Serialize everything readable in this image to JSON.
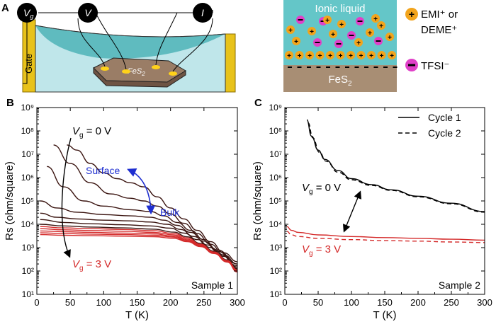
{
  "panel_a": {
    "label": "A",
    "meters": [
      "V",
      "V",
      "I"
    ],
    "meter_vg_sub": "g",
    "gate_label": "Gate",
    "sample_label": "FeS",
    "sample_label_sub": "2",
    "schematic_top": "Ionic liquid",
    "schematic_bottom": "FeS",
    "schematic_bottom_sub": "2",
    "legend_cation": "EMI⁺ or",
    "legend_cation_2": "DEME⁺",
    "legend_anion": "TFSI⁻",
    "colors": {
      "liquid": "#64c6c8",
      "substrate": "#a88e74",
      "cation": "#f2a41c",
      "anion": "#e040c8",
      "gate": "#e8c21a"
    }
  },
  "chart_data": [
    {
      "type": "line",
      "panel_label": "B",
      "ylabel": "Rs (ohm/square)",
      "xlabel": "T (K)",
      "xlim": [
        0,
        300
      ],
      "ylim_log10": [
        1,
        9
      ],
      "xticks": [
        0,
        50,
        100,
        150,
        200,
        250,
        300
      ],
      "yticks": [
        "10¹",
        "10²",
        "10³",
        "10⁴",
        "10⁵",
        "10⁶",
        "10⁷",
        "10⁸",
        "10⁹"
      ],
      "scale_y": "log",
      "annotations": {
        "vg_top": "= 0 V",
        "vg_bottom": "= 3 V",
        "surface": "Surface",
        "bulk": "Bulk",
        "sample": "Sample 1"
      },
      "colors": {
        "dark": "#3a1410",
        "red": "#d42a2a",
        "blue": "#1f2fd0"
      },
      "series": [
        {
          "color": "#3a1410",
          "points": [
            [
              45,
              25000000.0
            ],
            [
              60,
              15000000.0
            ],
            [
              80,
              4000000.0
            ],
            [
              100,
              1600000.0
            ],
            [
              120,
              900000.0
            ],
            [
              140,
              600000.0
            ],
            [
              160,
              400000.0
            ],
            [
              180,
              150000.0
            ],
            [
              200,
              50000.0
            ],
            [
              220,
              17000.0
            ],
            [
              240,
              5500
            ],
            [
              260,
              1800
            ],
            [
              280,
              600
            ],
            [
              300,
              250
            ]
          ]
        },
        {
          "color": "#3a1410",
          "points": [
            [
              25,
              25000000.0
            ],
            [
              50,
              4000000.0
            ],
            [
              80,
              600000.0
            ],
            [
              110,
              200000.0
            ],
            [
              140,
              130000.0
            ],
            [
              160,
              100000.0
            ],
            [
              180,
              60000.0
            ],
            [
              200,
              28000.0
            ],
            [
              220,
              11000.0
            ],
            [
              240,
              4000
            ],
            [
              260,
              1400
            ],
            [
              280,
              480
            ],
            [
              300,
              200
            ]
          ]
        },
        {
          "color": "#3a1410",
          "points": [
            [
              15,
              3000000.0
            ],
            [
              40,
              400000.0
            ],
            [
              70,
              100000.0
            ],
            [
              100,
              60000.0
            ],
            [
              140,
              42000.0
            ],
            [
              170,
              35000.0
            ],
            [
              190,
              23000.0
            ],
            [
              210,
              12000.0
            ],
            [
              230,
              5500
            ],
            [
              250,
              2200
            ],
            [
              270,
              800
            ],
            [
              300,
              200
            ]
          ]
        },
        {
          "color": "#3a1410",
          "points": [
            [
              5,
              100000.0
            ],
            [
              30,
              50000.0
            ],
            [
              60,
              33000.0
            ],
            [
              100,
              26000.0
            ],
            [
              140,
              23000.0
            ],
            [
              170,
              20000.0
            ],
            [
              190,
              15000.0
            ],
            [
              210,
              9000
            ],
            [
              230,
              4500
            ],
            [
              250,
              1900
            ],
            [
              270,
              700
            ],
            [
              300,
              170
            ]
          ]
        },
        {
          "color": "#3a1410",
          "points": [
            [
              5,
              30000.0
            ],
            [
              30,
              20000.0
            ],
            [
              60,
              17000.0
            ],
            [
              100,
              15000.0
            ],
            [
              140,
              14000.0
            ],
            [
              170,
              12500.0
            ],
            [
              195,
              10000.0
            ],
            [
              215,
              6000
            ],
            [
              235,
              3000
            ],
            [
              255,
              1300
            ],
            [
              275,
              500
            ],
            [
              300,
              150
            ]
          ]
        },
        {
          "color": "#3a1410",
          "points": [
            [
              5,
              16000.0
            ],
            [
              40,
              12000.0
            ],
            [
              80,
              10500.0
            ],
            [
              130,
              9500
            ],
            [
              170,
              8500
            ],
            [
              200,
              6800
            ],
            [
              220,
              4200
            ],
            [
              240,
              2200
            ],
            [
              260,
              1000
            ],
            [
              280,
              420
            ],
            [
              300,
              130
            ]
          ]
        },
        {
          "color": "#3a1410",
          "points": [
            [
              5,
              10000.0
            ],
            [
              40,
              8500
            ],
            [
              80,
              7600
            ],
            [
              130,
              7000
            ],
            [
              175,
              6200
            ],
            [
              205,
              4600
            ],
            [
              225,
              2900
            ],
            [
              245,
              1500
            ],
            [
              265,
              700
            ],
            [
              285,
              300
            ],
            [
              300,
              120
            ]
          ]
        },
        {
          "color": "#d42a2a",
          "points": [
            [
              5,
              8000
            ],
            [
              40,
              7000
            ],
            [
              80,
              6500
            ],
            [
              130,
              6000
            ],
            [
              175,
              5300
            ],
            [
              205,
              4000
            ],
            [
              225,
              2600
            ],
            [
              245,
              1400
            ],
            [
              265,
              650
            ],
            [
              285,
              280
            ],
            [
              300,
              110
            ]
          ]
        },
        {
          "color": "#d42a2a",
          "points": [
            [
              5,
              6500
            ],
            [
              40,
              5800
            ],
            [
              80,
              5400
            ],
            [
              130,
              5000
            ],
            [
              175,
              4500
            ],
            [
              205,
              3500
            ],
            [
              225,
              2300
            ],
            [
              245,
              1300
            ],
            [
              265,
              620
            ],
            [
              285,
              270
            ],
            [
              300,
              105
            ]
          ]
        },
        {
          "color": "#d42a2a",
          "points": [
            [
              5,
              5200
            ],
            [
              40,
              4800
            ],
            [
              80,
              4500
            ],
            [
              130,
              4200
            ],
            [
              175,
              3900
            ],
            [
              205,
              3100
            ],
            [
              225,
              2100
            ],
            [
              245,
              1200
            ],
            [
              265,
              600
            ],
            [
              285,
              260
            ],
            [
              300,
              100
            ]
          ]
        },
        {
          "color": "#d42a2a",
          "points": [
            [
              5,
              4300
            ],
            [
              40,
              4000
            ],
            [
              80,
              3800
            ],
            [
              130,
              3600
            ],
            [
              175,
              3400
            ],
            [
              205,
              2800
            ],
            [
              225,
              1900
            ],
            [
              245,
              1150
            ],
            [
              265,
              580
            ],
            [
              285,
              250
            ],
            [
              300,
              95
            ]
          ]
        },
        {
          "color": "#d42a2a",
          "points": [
            [
              5,
              3600
            ],
            [
              40,
              3400
            ],
            [
              80,
              3250
            ],
            [
              130,
              3100
            ],
            [
              175,
              2950
            ],
            [
              205,
              2500
            ],
            [
              225,
              1800
            ],
            [
              245,
              1100
            ],
            [
              265,
              560
            ],
            [
              285,
              240
            ],
            [
              300,
              90
            ]
          ]
        }
      ]
    },
    {
      "type": "line",
      "panel_label": "C",
      "ylabel": "Rs (ohm/square)",
      "xlabel": "T (K)",
      "xlim": [
        0,
        300
      ],
      "ylim_log10": [
        1,
        9
      ],
      "xticks": [
        0,
        50,
        100,
        150,
        200,
        250,
        300
      ],
      "yticks": [
        "10¹",
        "10²",
        "10³",
        "10⁴",
        "10⁵",
        "10⁶",
        "10⁷",
        "10⁸",
        "10⁹"
      ],
      "scale_y": "log",
      "legend": [
        "Cycle 1",
        "Cycle 2"
      ],
      "legend_placement": "top-right",
      "annotations": {
        "vg_top": "= 0 V",
        "vg_bottom": "= 3 V",
        "sample": "Sample 2"
      },
      "series": [
        {
          "name": "Cycle 1",
          "color": "#000000",
          "dash": false,
          "points": [
            [
              33,
              300000000.0
            ],
            [
              40,
              60000000.0
            ],
            [
              50,
              15000000.0
            ],
            [
              60,
              6000000.0
            ],
            [
              80,
              2000000.0
            ],
            [
              100,
              900000.0
            ],
            [
              130,
              500000.0
            ],
            [
              160,
              300000.0
            ],
            [
              200,
              160000.0
            ],
            [
              250,
              80000.0
            ],
            [
              300,
              35000.0
            ]
          ]
        },
        {
          "name": "Cycle 2",
          "color": "#000000",
          "dash": true,
          "points": [
            [
              35,
              220000000.0
            ],
            [
              42,
              50000000.0
            ],
            [
              52,
              12000000.0
            ],
            [
              62,
              5000000.0
            ],
            [
              80,
              1700000.0
            ],
            [
              100,
              800000.0
            ],
            [
              130,
              460000.0
            ],
            [
              160,
              280000.0
            ],
            [
              200,
              150000.0
            ],
            [
              250,
              75000.0
            ],
            [
              300,
              33000.0
            ]
          ]
        },
        {
          "name": "Cycle 1",
          "color": "#d42a2a",
          "dash": false,
          "points": [
            [
              3,
              8000
            ],
            [
              10,
              5500
            ],
            [
              20,
              4500
            ],
            [
              50,
              3500
            ],
            [
              100,
              3000
            ],
            [
              150,
              2700
            ],
            [
              200,
              2500
            ],
            [
              250,
              2300
            ],
            [
              300,
              2100
            ]
          ]
        },
        {
          "name": "Cycle 2",
          "color": "#d42a2a",
          "dash": true,
          "points": [
            [
              3,
              5000
            ],
            [
              10,
              3500
            ],
            [
              20,
              3000
            ],
            [
              50,
              2500
            ],
            [
              100,
              2200
            ],
            [
              150,
              2000
            ],
            [
              200,
              1900
            ],
            [
              250,
              1750
            ],
            [
              300,
              1650
            ]
          ]
        }
      ]
    }
  ]
}
